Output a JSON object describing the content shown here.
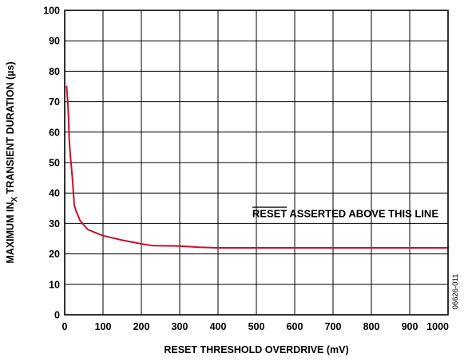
{
  "chart_data": {
    "type": "line",
    "xlabel": "RESET THRESHOLD OVERDRIVE (mV)",
    "ylabel": {
      "pre": "MAXIMUM IN",
      "sub": "X",
      "post": " TRANSIENT DURATION (µs)"
    },
    "xlim": [
      0,
      1000
    ],
    "ylim": [
      0,
      100
    ],
    "xticks": [
      "0",
      "100",
      "200",
      "300",
      "400",
      "500",
      "600",
      "700",
      "800",
      "900",
      "1000"
    ],
    "yticks": [
      "0",
      "10",
      "20",
      "30",
      "40",
      "50",
      "60",
      "70",
      "80",
      "90",
      "100"
    ],
    "grid": true,
    "series": [
      {
        "color": "#c8102e",
        "points": [
          [
            5,
            75
          ],
          [
            8,
            70
          ],
          [
            10,
            65
          ],
          [
            12,
            57
          ],
          [
            15,
            52
          ],
          [
            20,
            45
          ],
          [
            25,
            36
          ],
          [
            30,
            34
          ],
          [
            40,
            31
          ],
          [
            60,
            28
          ],
          [
            80,
            27
          ],
          [
            100,
            26
          ],
          [
            150,
            24.5
          ],
          [
            200,
            23.3
          ],
          [
            230,
            22.7
          ],
          [
            300,
            22.6
          ],
          [
            350,
            22.2
          ],
          [
            400,
            22
          ],
          [
            500,
            22
          ],
          [
            600,
            22
          ],
          [
            700,
            22
          ],
          [
            800,
            22
          ],
          [
            900,
            22
          ],
          [
            1000,
            22
          ]
        ]
      }
    ],
    "annotation": {
      "overline": "RESET",
      "rest": " ASSERTED ABOVE THIS LINE",
      "threshold": 30
    },
    "figure_id": "06626-011"
  }
}
